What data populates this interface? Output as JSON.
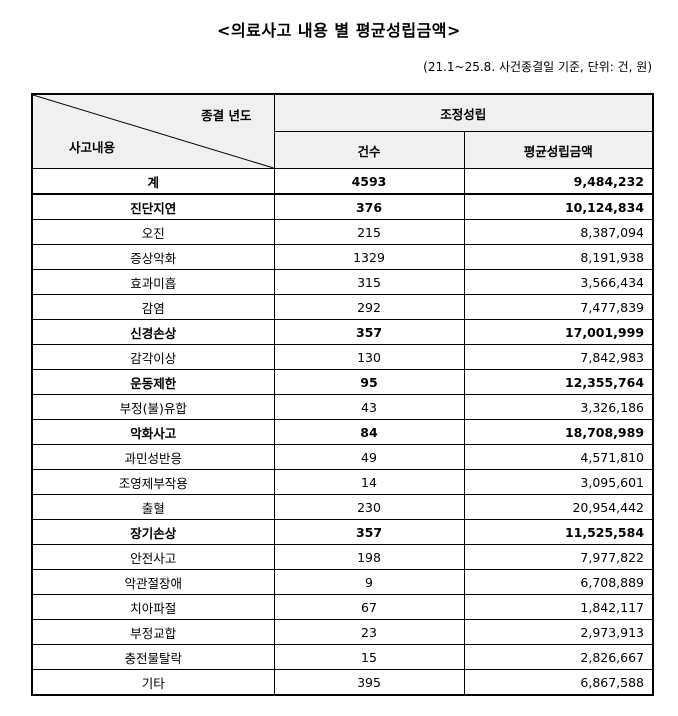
{
  "title": "<의료사고 내용 별 평균성립금액>",
  "note": "(21.1~25.8. 사건종결일 기준, 단위: 건, 원)",
  "header": {
    "corner_top": "종결 년도",
    "corner_bottom": "사고내용",
    "group": "조정성립",
    "col_count": "건수",
    "col_amount": "평균성립금액"
  },
  "rows": [
    {
      "label": "계",
      "count": "4593",
      "amount": "9,484,232",
      "bold": true
    },
    {
      "label": "진단지연",
      "count": "376",
      "amount": "10,124,834",
      "bold": true
    },
    {
      "label": "오진",
      "count": "215",
      "amount": "8,387,094",
      "bold": false
    },
    {
      "label": "증상악화",
      "count": "1329",
      "amount": "8,191,938",
      "bold": false
    },
    {
      "label": "효과미흡",
      "count": "315",
      "amount": "3,566,434",
      "bold": false
    },
    {
      "label": "감염",
      "count": "292",
      "amount": "7,477,839",
      "bold": false
    },
    {
      "label": "신경손상",
      "count": "357",
      "amount": "17,001,999",
      "bold": true
    },
    {
      "label": "감각이상",
      "count": "130",
      "amount": "7,842,983",
      "bold": false
    },
    {
      "label": "운동제한",
      "count": "95",
      "amount": "12,355,764",
      "bold": true
    },
    {
      "label": "부정(불)유합",
      "count": "43",
      "amount": "3,326,186",
      "bold": false
    },
    {
      "label": "악화사고",
      "count": "84",
      "amount": "18,708,989",
      "bold": true
    },
    {
      "label": "과민성반응",
      "count": "49",
      "amount": "4,571,810",
      "bold": false
    },
    {
      "label": "조영제부작용",
      "count": "14",
      "amount": "3,095,601",
      "bold": false
    },
    {
      "label": "출혈",
      "count": "230",
      "amount": "20,954,442",
      "bold": false
    },
    {
      "label": "장기손상",
      "count": "357",
      "amount": "11,525,584",
      "bold": true
    },
    {
      "label": "안전사고",
      "count": "198",
      "amount": "7,977,822",
      "bold": false
    },
    {
      "label": "악관절장애",
      "count": "9",
      "amount": "6,708,889",
      "bold": false
    },
    {
      "label": "치아파절",
      "count": "67",
      "amount": "1,842,117",
      "bold": false
    },
    {
      "label": "부정교합",
      "count": "23",
      "amount": "2,973,913",
      "bold": false
    },
    {
      "label": "충전물탈락",
      "count": "15",
      "amount": "2,826,667",
      "bold": false
    },
    {
      "label": "기타",
      "count": "395",
      "amount": "6,867,588",
      "bold": false
    }
  ]
}
